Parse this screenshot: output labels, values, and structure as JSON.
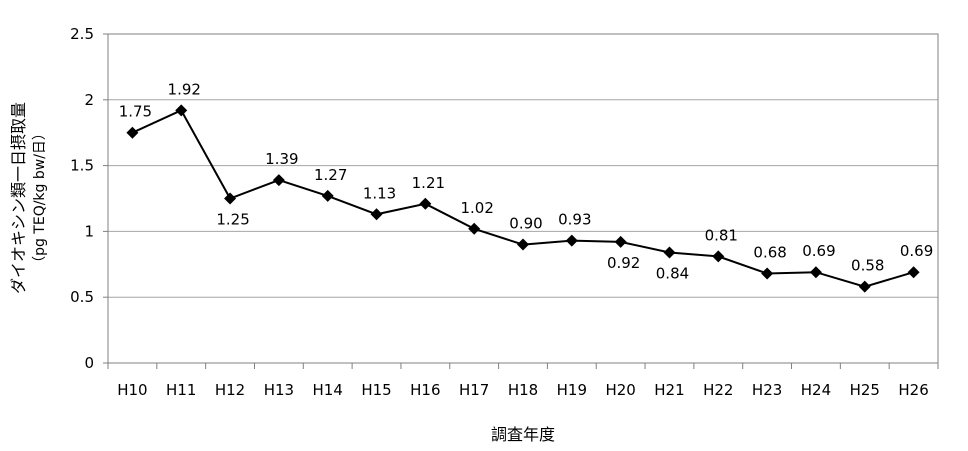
{
  "chart_data": {
    "type": "line",
    "title": "",
    "xlabel": "調査年度",
    "ylabel": "ダイオキシン類一日摂取量",
    "ylabel_unit": "（pg TEQ/kg bw/日）",
    "categories": [
      "H10",
      "H11",
      "H12",
      "H13",
      "H14",
      "H15",
      "H16",
      "H17",
      "H18",
      "H19",
      "H20",
      "H21",
      "H22",
      "H23",
      "H24",
      "H25",
      "H26"
    ],
    "series": [
      {
        "values": [
          1.75,
          1.92,
          1.25,
          1.39,
          1.27,
          1.13,
          1.21,
          1.02,
          0.9,
          0.93,
          0.92,
          0.84,
          0.81,
          0.68,
          0.69,
          0.58,
          0.69
        ],
        "labels": [
          "1.75",
          "1.92",
          "1.25",
          "1.39",
          "1.27",
          "1.13",
          "1.21",
          "1.02",
          "0.90",
          "0.93",
          "0.92",
          "0.84",
          "0.81",
          "0.68",
          "0.69",
          "0.58",
          "0.69"
        ],
        "label_positions": [
          "above",
          "above",
          "below",
          "above",
          "above",
          "above",
          "above",
          "above",
          "above",
          "above",
          "below",
          "below",
          "above",
          "above",
          "above",
          "above",
          "above"
        ]
      }
    ],
    "y_ticks": [
      "0",
      "0.5",
      "1",
      "1.5",
      "2",
      "2.5"
    ],
    "ylim": [
      0,
      2.5
    ],
    "grid": true,
    "legend": "none",
    "colors": {
      "line": "#000000",
      "marker": "#000000",
      "grid": "#a6a6a6",
      "axis": "#808080"
    }
  }
}
